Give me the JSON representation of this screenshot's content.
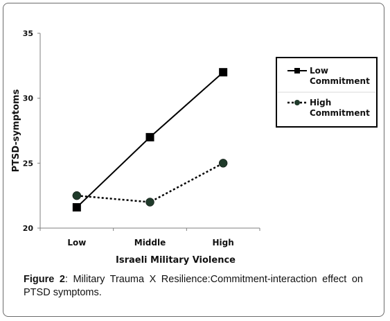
{
  "figure": {
    "label": "Figure 2",
    "caption": ":  Military Trauma X Resilience:Commitment-interaction effect on PTSD symptoms."
  },
  "chart_data": {
    "type": "line",
    "categories": [
      "Low",
      "Middle",
      "High"
    ],
    "xlabel": "Israeli Military Violence",
    "ylabel": "PTSD-symptoms",
    "ylim": [
      20,
      35
    ],
    "yticks": [
      "20",
      "25",
      "30",
      "35"
    ],
    "grid": false,
    "legend_position": "top-right",
    "series": [
      {
        "name": "Low Commitment",
        "name_lines": [
          "Low",
          "Commitment"
        ],
        "values": [
          21.6,
          27.0,
          32.0
        ],
        "line_style": "solid",
        "marker": "square",
        "color": "#000000"
      },
      {
        "name": "High Commitment",
        "name_lines": [
          "High",
          "Commitment"
        ],
        "values": [
          22.5,
          22.0,
          25.0
        ],
        "line_style": "dotted",
        "marker": "circle",
        "color": "#1f3a2a"
      }
    ]
  }
}
